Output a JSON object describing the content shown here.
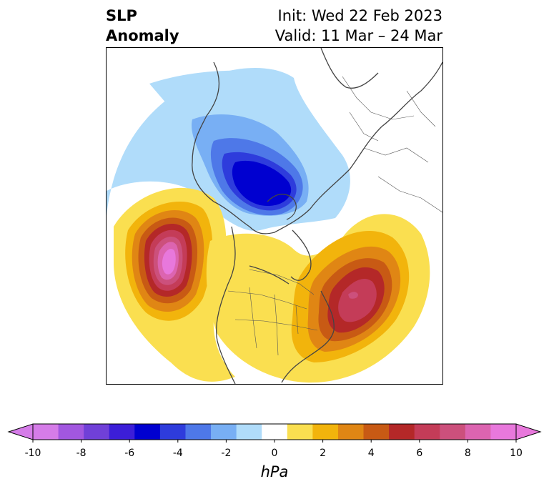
{
  "header": {
    "variable_line1": "SLP",
    "variable_line2": "Anomaly",
    "init_text": "Init: Wed 22 Feb 2023",
    "valid_text": "Valid: 11 Mar – 24 Mar"
  },
  "colorbar": {
    "unit": "hPa",
    "tick_labels": [
      "-10",
      "-8",
      "-6",
      "-4",
      "-2",
      "0",
      "2",
      "4",
      "6",
      "8",
      "10"
    ],
    "colors": [
      "#d57ce8",
      "#a257e0",
      "#7040d8",
      "#3c1ed8",
      "#0000d0",
      "#2e3cdc",
      "#4e78e8",
      "#78aff4",
      "#b0dcfa",
      "#ffffff",
      "#fadf50",
      "#f2b40c",
      "#e08614",
      "#c85a14",
      "#b42828",
      "#c43c58",
      "#cc507c",
      "#dc64b0",
      "#e878dc"
    ]
  },
  "map": {
    "projection": "north-polar-stereographic",
    "features": [
      "coastlines",
      "country-borders",
      "us-state-borders"
    ],
    "anomaly_centers": [
      {
        "name": "negative-anomaly-over-arctic",
        "sign": "negative"
      },
      {
        "name": "positive-anomaly-gulf-of-alaska",
        "sign": "positive"
      },
      {
        "name": "positive-anomaly-north-atlantic",
        "sign": "positive"
      }
    ]
  }
}
